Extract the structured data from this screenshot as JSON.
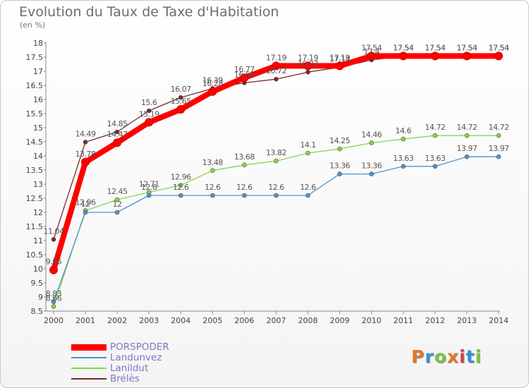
{
  "title": "Evolution du Taux de Taxe d'Habitation",
  "unit": "(en %)",
  "logo_text": "Proxiti",
  "logo_colors": [
    "#e8742c",
    "#3b8ed8",
    "#7cc242",
    "#e8742c",
    "#d8403a",
    "#3b8ed8",
    "#7cc242"
  ],
  "chart_data": {
    "type": "line",
    "x": [
      2000,
      2001,
      2002,
      2003,
      2004,
      2005,
      2006,
      2007,
      2008,
      2009,
      2010,
      2011,
      2012,
      2013,
      2014
    ],
    "ylim": [
      8.5,
      18
    ],
    "ytick_step": 0.5,
    "grid": false,
    "legend_position": "bottom-left",
    "series": [
      {
        "name": "PORSPODER",
        "color": "#ff0000",
        "values": [
          9.96,
          13.78,
          14.47,
          15.19,
          15.65,
          16.28,
          16.77,
          17.19,
          17.19,
          17.19,
          17.54,
          17.54,
          17.54,
          17.54,
          17.54
        ],
        "labels": [
          "9.96",
          "13.78",
          "14.47",
          "15.19",
          "15.65",
          "16.28",
          "16.77",
          "17.19",
          "17.19",
          "17.19",
          "17.54",
          "17.54",
          "17.54",
          "17.54",
          "17.54"
        ]
      },
      {
        "name": "Landunvez",
        "color": "#4f94cd",
        "values": [
          8.83,
          12,
          12,
          12.6,
          12.6,
          12.6,
          12.6,
          12.6,
          12.6,
          13.36,
          13.36,
          13.63,
          13.63,
          13.97,
          13.97
        ],
        "labels": [
          "8.83",
          "12",
          "12",
          "12.6",
          "12.6",
          "12.6",
          "12.6",
          "12.6",
          "12.6",
          "13.36",
          "13.36",
          "13.63",
          "13.63",
          "13.97",
          "13.97"
        ]
      },
      {
        "name": "Lanildut",
        "color": "#8ad34a",
        "values": [
          8.66,
          12.06,
          12.45,
          12.71,
          12.96,
          13.48,
          13.68,
          13.82,
          14.1,
          14.25,
          14.46,
          14.6,
          14.72,
          14.72,
          14.72
        ],
        "labels": [
          "8.66",
          "12.06",
          "12.45",
          "12.71",
          "12.96",
          "13.48",
          "13.68",
          "13.82",
          "14.1",
          "14.25",
          "14.46",
          "14.6",
          "14.72",
          "14.72",
          "14.72"
        ]
      },
      {
        "name": "Brélès",
        "color": "#7a2a2a",
        "values": [
          11.04,
          14.49,
          14.85,
          15.6,
          16.07,
          16.39,
          16.59,
          16.72,
          16.97,
          17.14,
          17.4,
          17.54,
          17.54,
          17.54,
          17.54
        ],
        "labels": [
          "11.04",
          "14.49",
          "14.85",
          "15.6",
          "16.07",
          "16.39",
          "16.59",
          "16.72",
          "16.97",
          "17.14",
          "17.4",
          "17.54",
          "17.54",
          "17.54",
          "17.54"
        ]
      }
    ]
  }
}
